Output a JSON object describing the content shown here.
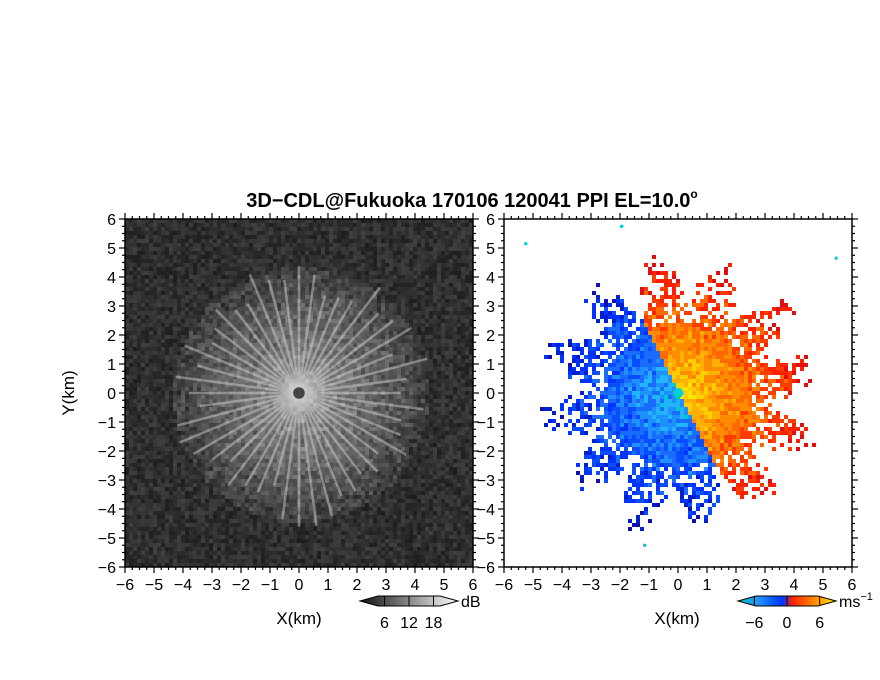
{
  "title_main": "3D−CDL@Fukuoka 170106 120041 PPI EL=10.0",
  "title_degree": "o",
  "chart_data": [
    {
      "type": "heatmap",
      "panel": "reflectivity",
      "xlabel": "X(km)",
      "ylabel": "Y(km)",
      "xlim": [
        -6,
        6
      ],
      "ylim": [
        -6,
        6
      ],
      "x_ticks": [
        "−6",
        "−5",
        "−4",
        "−3",
        "−2",
        "−1",
        "0",
        "1",
        "2",
        "3",
        "4",
        "5",
        "6"
      ],
      "y_ticks": [
        "−6",
        "−5",
        "−4",
        "−3",
        "−2",
        "−1",
        "0",
        "1",
        "2",
        "3",
        "4",
        "5",
        "6"
      ],
      "data_extent_radius_km": 4.4,
      "center_dot_radius_km": 0.2,
      "colorbar": {
        "label": "dB",
        "ticks": [
          "6",
          "12",
          "18"
        ],
        "range": [
          0,
          24
        ],
        "colors": [
          "#1a1a1a",
          "#ffffff"
        ]
      }
    },
    {
      "type": "heatmap",
      "panel": "doppler_velocity",
      "xlabel": "X(km)",
      "ylabel": "",
      "xlim": [
        -6,
        6
      ],
      "ylim": [
        -6,
        6
      ],
      "x_ticks": [
        "−6",
        "−5",
        "−4",
        "−3",
        "−2",
        "−1",
        "0",
        "1",
        "2",
        "3",
        "4",
        "5",
        "6"
      ],
      "y_ticks": [
        "−6",
        "−5",
        "−4",
        "−3",
        "−2",
        "−1",
        "0",
        "1",
        "2",
        "3",
        "4",
        "5",
        "6"
      ],
      "data_extent_radius_km": 4.6,
      "colorbar": {
        "label": "ms",
        "label_sup": "−1",
        "ticks": [
          "−6",
          "0",
          "6"
        ],
        "range": [
          -9,
          9
        ],
        "colors": [
          "#00c8d2",
          "#0033ff",
          "#1e90ff",
          "#ff2000",
          "#ff8c00",
          "#ffe600"
        ]
      }
    }
  ],
  "colors": {
    "frame": "#000000",
    "background": "#ffffff"
  }
}
